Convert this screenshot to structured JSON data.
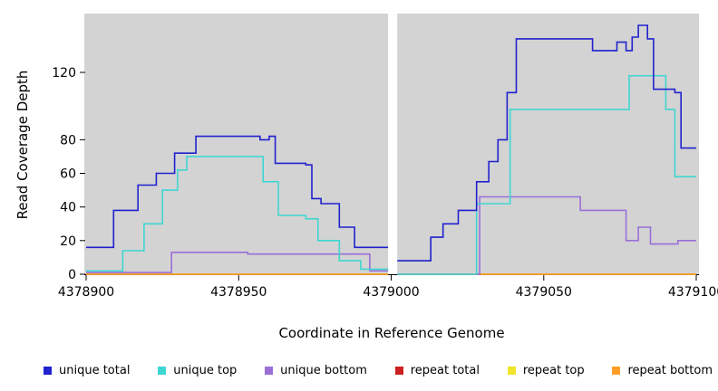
{
  "chart_data": {
    "type": "line",
    "interpolation": "step-after",
    "title": "",
    "xlabel": "Coordinate in Reference Genome",
    "ylabel": "Read Coverage Depth",
    "xlim": [
      4378900,
      4379100
    ],
    "ylim": [
      0,
      155
    ],
    "x_ticks": [
      4378900,
      4378950,
      4379000,
      4379050,
      4379100
    ],
    "y_ticks": [
      0,
      20,
      40,
      60,
      80,
      120
    ],
    "plot_background": "#d3d3d3",
    "gap_region": [
      4378999,
      4379002
    ],
    "axis_color": "#000000",
    "grid": false,
    "legend_position": "bottom",
    "series": [
      {
        "name": "unique total",
        "color": "#2121ce",
        "segments": [
          [
            [
              4378900,
              16
            ],
            [
              4378909,
              38
            ],
            [
              4378917,
              53
            ],
            [
              4378923,
              60
            ],
            [
              4378929,
              72
            ],
            [
              4378936,
              82
            ],
            [
              4378957,
              80
            ],
            [
              4378960,
              82
            ],
            [
              4378962,
              66
            ],
            [
              4378972,
              65
            ],
            [
              4378974,
              45
            ],
            [
              4378977,
              42
            ],
            [
              4378983,
              28
            ],
            [
              4378988,
              16
            ],
            [
              4378999,
              16
            ]
          ],
          [
            [
              4379002,
              8
            ],
            [
              4379013,
              22
            ],
            [
              4379017,
              30
            ],
            [
              4379022,
              38
            ],
            [
              4379028,
              55
            ],
            [
              4379032,
              67
            ],
            [
              4379035,
              80
            ],
            [
              4379038,
              108
            ],
            [
              4379041,
              140
            ],
            [
              4379066,
              133
            ],
            [
              4379074,
              138
            ],
            [
              4379077,
              133
            ],
            [
              4379079,
              141
            ],
            [
              4379081,
              148
            ],
            [
              4379084,
              140
            ],
            [
              4379086,
              110
            ],
            [
              4379093,
              108
            ],
            [
              4379095,
              75
            ],
            [
              4379100,
              75
            ]
          ]
        ]
      },
      {
        "name": "unique top",
        "color": "#3fd6d2",
        "segments": [
          [
            [
              4378900,
              2
            ],
            [
              4378912,
              14
            ],
            [
              4378919,
              30
            ],
            [
              4378925,
              50
            ],
            [
              4378930,
              62
            ],
            [
              4378933,
              70
            ],
            [
              4378958,
              55
            ],
            [
              4378963,
              35
            ],
            [
              4378972,
              33
            ],
            [
              4378976,
              20
            ],
            [
              4378983,
              8
            ],
            [
              4378990,
              3
            ],
            [
              4378999,
              3
            ]
          ],
          [
            [
              4379002,
              0
            ],
            [
              4379028,
              42
            ],
            [
              4379039,
              98
            ],
            [
              4379078,
              118
            ],
            [
              4379090,
              98
            ],
            [
              4379093,
              58
            ],
            [
              4379100,
              58
            ]
          ]
        ]
      },
      {
        "name": "unique bottom",
        "color": "#9a6fd8",
        "segments": [
          [
            [
              4378900,
              1
            ],
            [
              4378928,
              13
            ],
            [
              4378953,
              12
            ],
            [
              4378993,
              2
            ],
            [
              4378999,
              2
            ]
          ],
          [
            [
              4379002,
              0
            ],
            [
              4379029,
              46
            ],
            [
              4379062,
              38
            ],
            [
              4379077,
              20
            ],
            [
              4379081,
              28
            ],
            [
              4379085,
              18
            ],
            [
              4379094,
              20
            ],
            [
              4379100,
              20
            ]
          ]
        ]
      },
      {
        "name": "repeat total",
        "color": "#cc2020",
        "segments": [
          [
            [
              4378900,
              0
            ],
            [
              4378999,
              0
            ]
          ],
          [
            [
              4379002,
              0
            ],
            [
              4379100,
              0
            ]
          ]
        ]
      },
      {
        "name": "repeat top",
        "color": "#efe52a",
        "segments": [
          [
            [
              4378900,
              0
            ],
            [
              4378999,
              0
            ]
          ],
          [
            [
              4379002,
              0
            ],
            [
              4379100,
              0
            ]
          ]
        ]
      },
      {
        "name": "repeat bottom",
        "color": "#ff9f2a",
        "segments": [
          [
            [
              4378900,
              0
            ],
            [
              4378999,
              0
            ]
          ],
          [
            [
              4379002,
              0
            ],
            [
              4379100,
              0
            ]
          ]
        ]
      }
    ]
  }
}
